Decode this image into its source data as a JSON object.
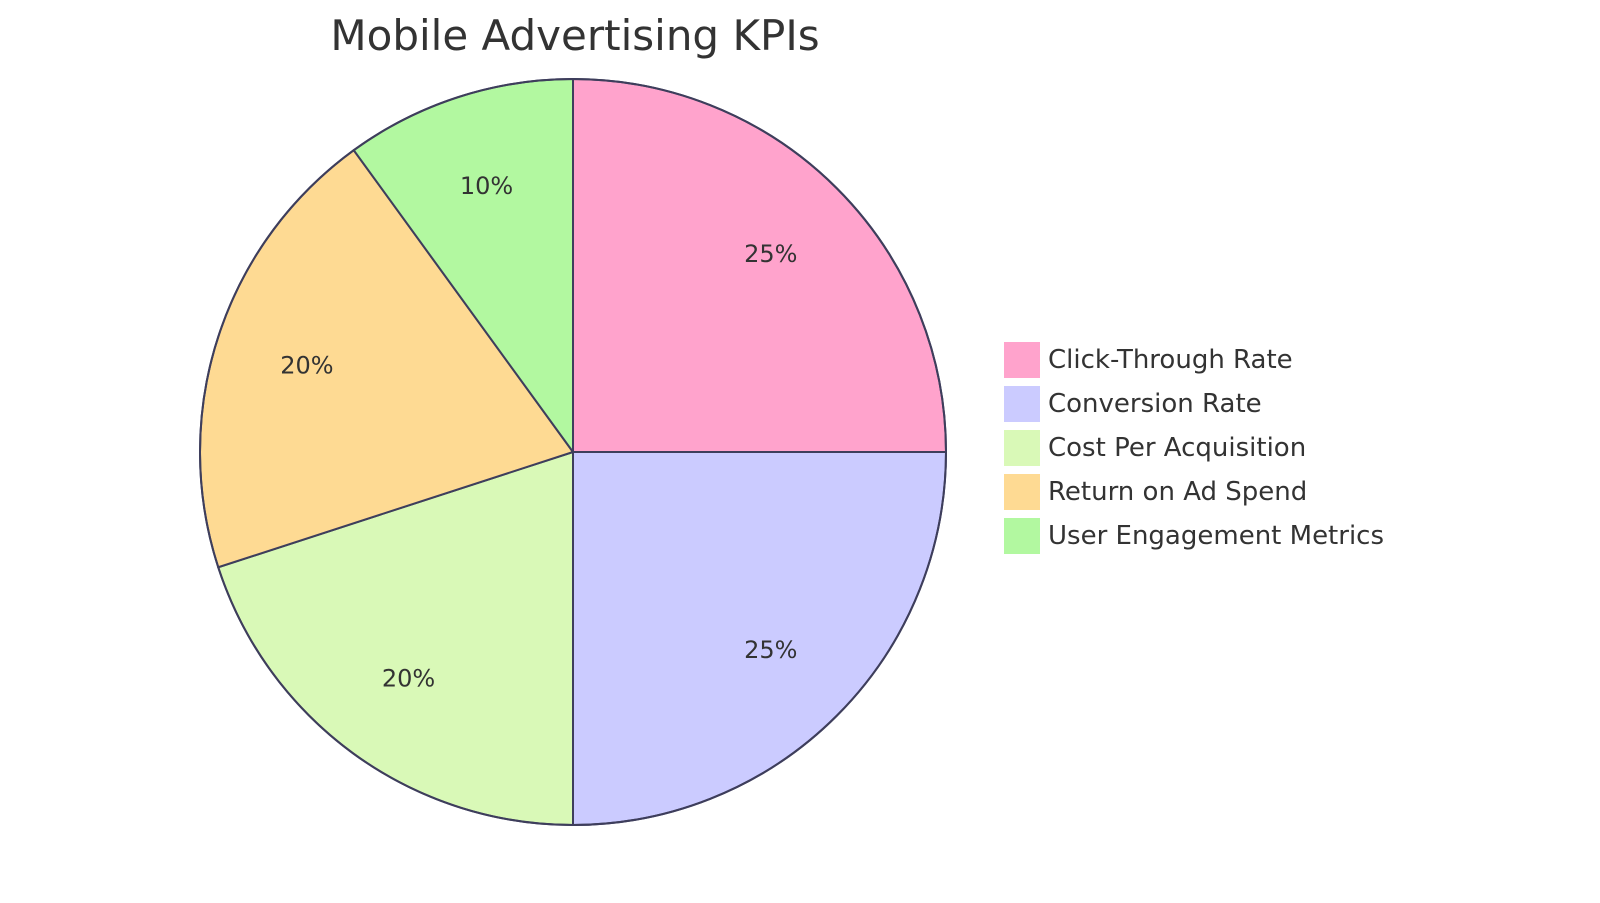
{
  "chart_data": {
    "type": "pie",
    "title": "Mobile Advertising KPIs",
    "legend_position": "right",
    "slices": [
      {
        "name": "Click-Through Rate",
        "value": 25,
        "label": "25%",
        "color": "#ffa3cc"
      },
      {
        "name": "Conversion Rate",
        "value": 25,
        "label": "25%",
        "color": "#cbcbff"
      },
      {
        "name": "Cost Per Acquisition",
        "value": 20,
        "label": "20%",
        "color": "#d9f9b7"
      },
      {
        "name": "Return on Ad Spend",
        "value": 20,
        "label": "20%",
        "color": "#feda93"
      },
      {
        "name": "User Engagement Metrics",
        "value": 10,
        "label": "10%",
        "color": "#b2f8a0"
      }
    ]
  },
  "colors": {
    "stroke": "#3e3e5c",
    "text": "#333333"
  }
}
